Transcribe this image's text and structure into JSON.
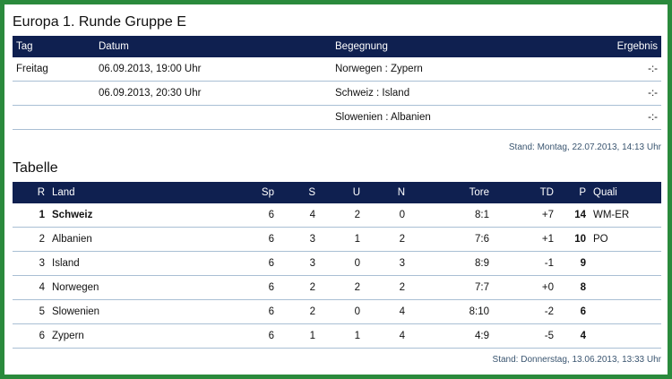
{
  "group_title": "Europa 1. Runde Gruppe E",
  "matches": {
    "headers": {
      "tag": "Tag",
      "datum": "Datum",
      "begegnung": "Begegnung",
      "ergebnis": "Ergebnis"
    },
    "rows": [
      {
        "tag": "Freitag",
        "datum": "06.09.2013, 19:00 Uhr",
        "begegnung": "Norwegen : Zypern",
        "ergebnis": "-:-"
      },
      {
        "tag": "",
        "datum": "06.09.2013, 20:30 Uhr",
        "begegnung": "Schweiz : Island",
        "ergebnis": "-:-"
      },
      {
        "tag": "",
        "datum": "",
        "begegnung": "Slowenien : Albanien",
        "ergebnis": "-:-"
      }
    ],
    "stand": "Stand: Montag, 22.07.2013, 14:13 Uhr"
  },
  "table": {
    "title": "Tabelle",
    "headers": {
      "r": "R",
      "land": "Land",
      "sp": "Sp",
      "s": "S",
      "u": "U",
      "n": "N",
      "tore": "Tore",
      "td": "TD",
      "p": "P",
      "quali": "Quali"
    },
    "rows": [
      {
        "r": "1",
        "land": "Schweiz",
        "sp": "6",
        "s": "4",
        "u": "2",
        "n": "0",
        "tore": "8:1",
        "td": "+7",
        "p": "14",
        "quali": "WM-ER"
      },
      {
        "r": "2",
        "land": "Albanien",
        "sp": "6",
        "s": "3",
        "u": "1",
        "n": "2",
        "tore": "7:6",
        "td": "+1",
        "p": "10",
        "quali": "PO"
      },
      {
        "r": "3",
        "land": "Island",
        "sp": "6",
        "s": "3",
        "u": "0",
        "n": "3",
        "tore": "8:9",
        "td": "-1",
        "p": "9",
        "quali": ""
      },
      {
        "r": "4",
        "land": "Norwegen",
        "sp": "6",
        "s": "2",
        "u": "2",
        "n": "2",
        "tore": "7:7",
        "td": "+0",
        "p": "8",
        "quali": ""
      },
      {
        "r": "5",
        "land": "Slowenien",
        "sp": "6",
        "s": "2",
        "u": "0",
        "n": "4",
        "tore": "8:10",
        "td": "-2",
        "p": "6",
        "quali": ""
      },
      {
        "r": "6",
        "land": "Zypern",
        "sp": "6",
        "s": "1",
        "u": "1",
        "n": "4",
        "tore": "4:9",
        "td": "-5",
        "p": "4",
        "quali": ""
      }
    ],
    "stand": "Stand: Donnerstag, 13.06.2013, 13:33 Uhr"
  },
  "colors": {
    "frame": "#2a8a3c",
    "header_bg": "#0f2050",
    "row_border": "#a9bfd4",
    "stand_text": "#3a5570"
  }
}
